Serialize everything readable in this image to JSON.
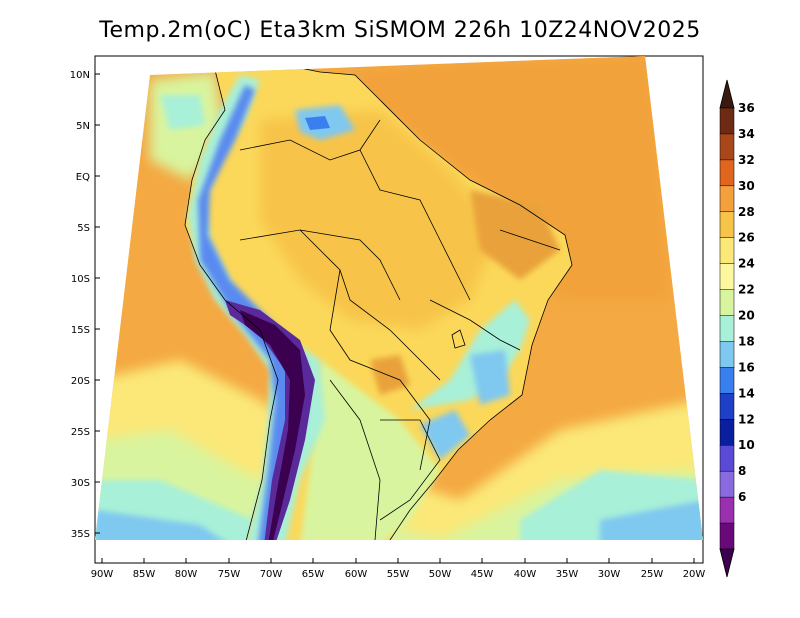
{
  "title": "Temp.2m(oC) Eta3km SiSMOM 226h 10Z24NOV2025",
  "lat_labels": [
    "10N",
    "5N",
    "EQ",
    "5S",
    "10S",
    "15S",
    "20S",
    "25S",
    "30S",
    "35S"
  ],
  "lon_labels": [
    "90W",
    "85W",
    "80W",
    "75W",
    "70W",
    "65W",
    "60W",
    "55W",
    "50W",
    "45W",
    "40W",
    "35W",
    "30W",
    "25W",
    "20W"
  ],
  "colorbar": {
    "labels": [
      "36",
      "34",
      "32",
      "30",
      "28",
      "26",
      "24",
      "22",
      "20",
      "18",
      "16",
      "14",
      "12",
      "10",
      "8",
      "6"
    ],
    "colors": [
      "#3a1a10",
      "#6e2a12",
      "#a8481a",
      "#e0651e",
      "#f4a03c",
      "#f7c44a",
      "#fbe878",
      "#fdf8a0",
      "#d9f49e",
      "#a8f0d8",
      "#7fc8f0",
      "#3a7ff0",
      "#1e40c8",
      "#0a1ea0",
      "#5a4ad6",
      "#8a6adf",
      "#9a2fb0",
      "#6a0a7a",
      "#3c0050"
    ]
  }
}
